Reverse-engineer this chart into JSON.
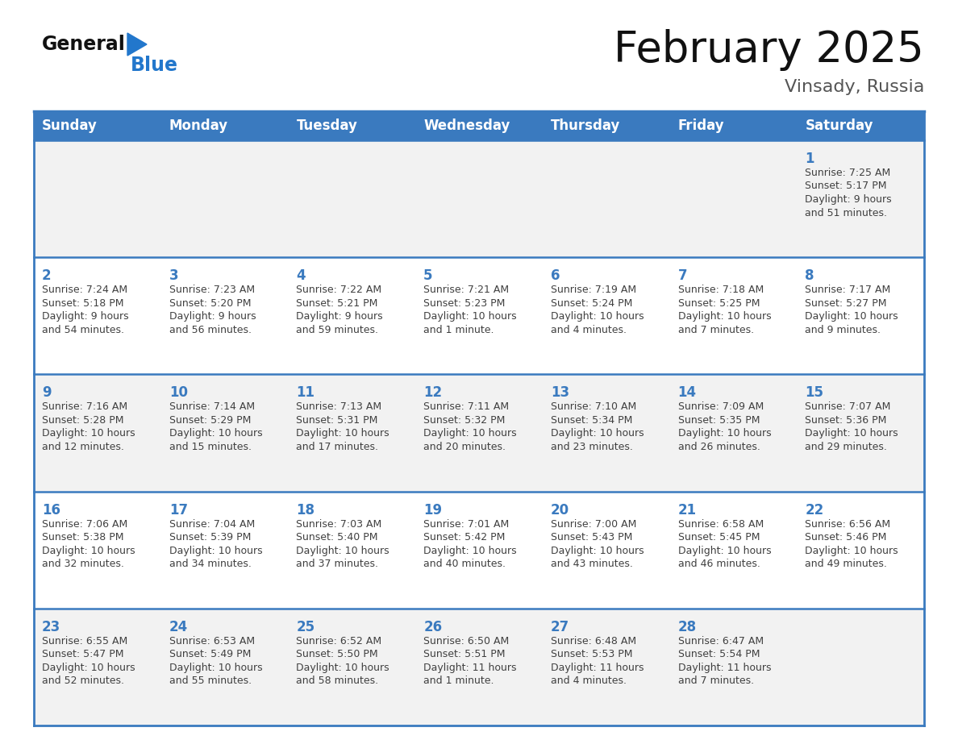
{
  "title": "February 2025",
  "subtitle": "Vinsady, Russia",
  "days_of_week": [
    "Sunday",
    "Monday",
    "Tuesday",
    "Wednesday",
    "Thursday",
    "Friday",
    "Saturday"
  ],
  "header_bg_color": "#3a7abf",
  "header_text_color": "#ffffff",
  "cell_bg_light": "#f2f2f2",
  "cell_bg_white": "#ffffff",
  "day_number_color": "#3a7abf",
  "info_text_color": "#404040",
  "border_color": "#3a7abf",
  "title_color": "#111111",
  "subtitle_color": "#555555",
  "week_separator_color": "#3a7abf",
  "logo_general_color": "#111111",
  "logo_blue_color": "#2277cc",
  "logo_triangle_color": "#2277cc",
  "calendar": [
    [
      {
        "day": null,
        "sunrise": null,
        "sunset": null,
        "daylight": null
      },
      {
        "day": null,
        "sunrise": null,
        "sunset": null,
        "daylight": null
      },
      {
        "day": null,
        "sunrise": null,
        "sunset": null,
        "daylight": null
      },
      {
        "day": null,
        "sunrise": null,
        "sunset": null,
        "daylight": null
      },
      {
        "day": null,
        "sunrise": null,
        "sunset": null,
        "daylight": null
      },
      {
        "day": null,
        "sunrise": null,
        "sunset": null,
        "daylight": null
      },
      {
        "day": 1,
        "sunrise": "7:25 AM",
        "sunset": "5:17 PM",
        "daylight": "9 hours and 51 minutes."
      }
    ],
    [
      {
        "day": 2,
        "sunrise": "7:24 AM",
        "sunset": "5:18 PM",
        "daylight": "9 hours and 54 minutes."
      },
      {
        "day": 3,
        "sunrise": "7:23 AM",
        "sunset": "5:20 PM",
        "daylight": "9 hours and 56 minutes."
      },
      {
        "day": 4,
        "sunrise": "7:22 AM",
        "sunset": "5:21 PM",
        "daylight": "9 hours and 59 minutes."
      },
      {
        "day": 5,
        "sunrise": "7:21 AM",
        "sunset": "5:23 PM",
        "daylight": "10 hours and 1 minute."
      },
      {
        "day": 6,
        "sunrise": "7:19 AM",
        "sunset": "5:24 PM",
        "daylight": "10 hours and 4 minutes."
      },
      {
        "day": 7,
        "sunrise": "7:18 AM",
        "sunset": "5:25 PM",
        "daylight": "10 hours and 7 minutes."
      },
      {
        "day": 8,
        "sunrise": "7:17 AM",
        "sunset": "5:27 PM",
        "daylight": "10 hours and 9 minutes."
      }
    ],
    [
      {
        "day": 9,
        "sunrise": "7:16 AM",
        "sunset": "5:28 PM",
        "daylight": "10 hours and 12 minutes."
      },
      {
        "day": 10,
        "sunrise": "7:14 AM",
        "sunset": "5:29 PM",
        "daylight": "10 hours and 15 minutes."
      },
      {
        "day": 11,
        "sunrise": "7:13 AM",
        "sunset": "5:31 PM",
        "daylight": "10 hours and 17 minutes."
      },
      {
        "day": 12,
        "sunrise": "7:11 AM",
        "sunset": "5:32 PM",
        "daylight": "10 hours and 20 minutes."
      },
      {
        "day": 13,
        "sunrise": "7:10 AM",
        "sunset": "5:34 PM",
        "daylight": "10 hours and 23 minutes."
      },
      {
        "day": 14,
        "sunrise": "7:09 AM",
        "sunset": "5:35 PM",
        "daylight": "10 hours and 26 minutes."
      },
      {
        "day": 15,
        "sunrise": "7:07 AM",
        "sunset": "5:36 PM",
        "daylight": "10 hours and 29 minutes."
      }
    ],
    [
      {
        "day": 16,
        "sunrise": "7:06 AM",
        "sunset": "5:38 PM",
        "daylight": "10 hours and 32 minutes."
      },
      {
        "day": 17,
        "sunrise": "7:04 AM",
        "sunset": "5:39 PM",
        "daylight": "10 hours and 34 minutes."
      },
      {
        "day": 18,
        "sunrise": "7:03 AM",
        "sunset": "5:40 PM",
        "daylight": "10 hours and 37 minutes."
      },
      {
        "day": 19,
        "sunrise": "7:01 AM",
        "sunset": "5:42 PM",
        "daylight": "10 hours and 40 minutes."
      },
      {
        "day": 20,
        "sunrise": "7:00 AM",
        "sunset": "5:43 PM",
        "daylight": "10 hours and 43 minutes."
      },
      {
        "day": 21,
        "sunrise": "6:58 AM",
        "sunset": "5:45 PM",
        "daylight": "10 hours and 46 minutes."
      },
      {
        "day": 22,
        "sunrise": "6:56 AM",
        "sunset": "5:46 PM",
        "daylight": "10 hours and 49 minutes."
      }
    ],
    [
      {
        "day": 23,
        "sunrise": "6:55 AM",
        "sunset": "5:47 PM",
        "daylight": "10 hours and 52 minutes."
      },
      {
        "day": 24,
        "sunrise": "6:53 AM",
        "sunset": "5:49 PM",
        "daylight": "10 hours and 55 minutes."
      },
      {
        "day": 25,
        "sunrise": "6:52 AM",
        "sunset": "5:50 PM",
        "daylight": "10 hours and 58 minutes."
      },
      {
        "day": 26,
        "sunrise": "6:50 AM",
        "sunset": "5:51 PM",
        "daylight": "11 hours and 1 minute."
      },
      {
        "day": 27,
        "sunrise": "6:48 AM",
        "sunset": "5:53 PM",
        "daylight": "11 hours and 4 minutes."
      },
      {
        "day": 28,
        "sunrise": "6:47 AM",
        "sunset": "5:54 PM",
        "daylight": "11 hours and 7 minutes."
      },
      {
        "day": null,
        "sunrise": null,
        "sunset": null,
        "daylight": null
      }
    ]
  ]
}
